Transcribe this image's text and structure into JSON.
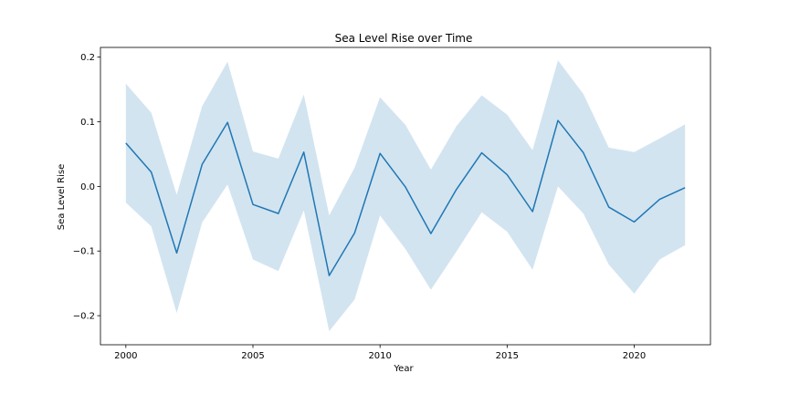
{
  "chart_data": {
    "type": "line",
    "title": "Sea Level Rise over Time",
    "xlabel": "Year",
    "ylabel": "Sea Level Rise",
    "xlim": [
      1999,
      2023
    ],
    "ylim": [
      -0.245,
      0.215
    ],
    "x_ticks": [
      2000,
      2005,
      2010,
      2015,
      2020
    ],
    "y_ticks": [
      -0.2,
      -0.1,
      0.0,
      0.1,
      0.2
    ],
    "x_tick_labels": [
      "2000",
      "2005",
      "2010",
      "2015",
      "2020"
    ],
    "y_tick_labels": [
      "−0.2",
      "−0.1",
      "0.0",
      "0.1",
      "0.2"
    ],
    "grid": false,
    "line_color": "#1f77b4",
    "band_color": "#1f77b4",
    "x": [
      2000,
      2001,
      2002,
      2003,
      2004,
      2005,
      2006,
      2007,
      2008,
      2009,
      2010,
      2011,
      2012,
      2013,
      2014,
      2015,
      2016,
      2017,
      2018,
      2019,
      2020,
      2021,
      2022
    ],
    "series": [
      {
        "values": [
          0.067,
          0.022,
          -0.103,
          0.034,
          0.099,
          -0.028,
          -0.042,
          0.053,
          -0.138,
          -0.072,
          0.051,
          -0.001,
          -0.073,
          -0.005,
          0.052,
          0.018,
          -0.039,
          0.102,
          0.052,
          -0.032,
          -0.055,
          -0.02,
          -0.002
        ],
        "ci_upper": [
          0.159,
          0.114,
          -0.013,
          0.124,
          0.193,
          0.054,
          0.043,
          0.142,
          -0.045,
          0.029,
          0.138,
          0.095,
          0.026,
          0.093,
          0.141,
          0.111,
          0.056,
          0.195,
          0.143,
          0.06,
          0.053,
          0.074,
          0.096
        ],
        "ci_lower": [
          -0.025,
          -0.062,
          -0.196,
          -0.056,
          0.003,
          -0.113,
          -0.131,
          -0.037,
          -0.224,
          -0.175,
          -0.045,
          -0.097,
          -0.16,
          -0.101,
          -0.04,
          -0.07,
          -0.129,
          0.0,
          -0.042,
          -0.121,
          -0.166,
          -0.113,
          -0.091
        ]
      }
    ]
  }
}
